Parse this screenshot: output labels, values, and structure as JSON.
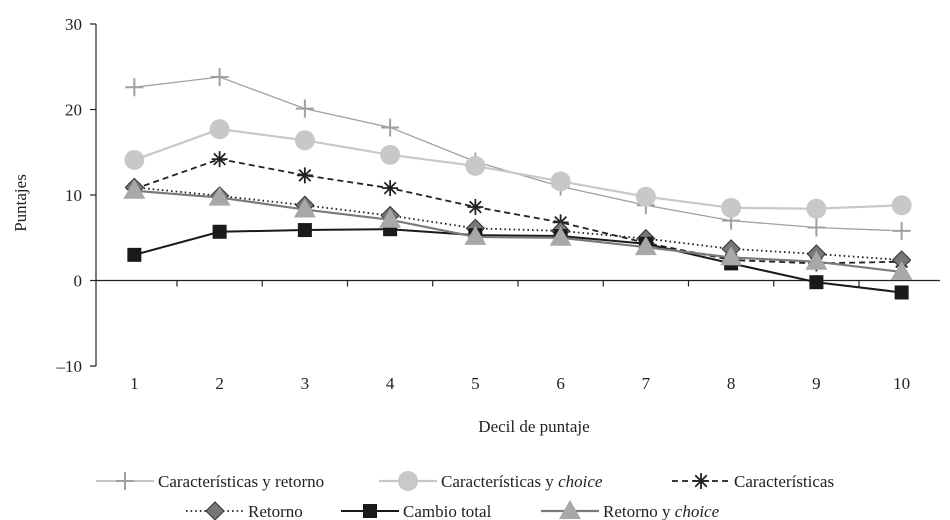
{
  "chart_data": {
    "type": "line",
    "title": "",
    "xlabel": "Decil de puntaje",
    "ylabel": "Puntajes",
    "x": [
      1,
      2,
      3,
      4,
      5,
      6,
      7,
      8,
      9,
      10
    ],
    "xlim": [
      0.55,
      10.45
    ],
    "ylim": [
      -10,
      30
    ],
    "yticks": [
      -10,
      0,
      10,
      20,
      30
    ],
    "ytick_labels": [
      "–10",
      "0",
      "10",
      "20",
      "30"
    ],
    "xtick_labels": [
      "1",
      "2",
      "3",
      "4",
      "5",
      "6",
      "7",
      "8",
      "9",
      "10"
    ],
    "grid": false,
    "legend_position": "bottom",
    "series": [
      {
        "name": "Características y retorno",
        "name_main": "Características y retorno",
        "name_italic": "",
        "color": "#a0a0a0",
        "line": "solid",
        "marker": "plus",
        "values": [
          22.6,
          23.8,
          20.1,
          17.9,
          13.9,
          11.0,
          8.8,
          7.0,
          6.2,
          5.8
        ]
      },
      {
        "name": "Características y choice",
        "name_main": "Características y ",
        "name_italic": "choice",
        "color": "#c8c8c8",
        "line": "solid",
        "marker": "circle",
        "values": [
          14.1,
          17.7,
          16.4,
          14.7,
          13.4,
          11.6,
          9.8,
          8.5,
          8.4,
          8.8
        ]
      },
      {
        "name": "Características",
        "name_main": "Características",
        "name_italic": "",
        "color": "#222222",
        "line": "dashed",
        "marker": "asterisk",
        "values": [
          10.7,
          14.2,
          12.3,
          10.8,
          8.6,
          6.8,
          4.4,
          2.4,
          2.0,
          2.2
        ]
      },
      {
        "name": "Retorno",
        "name_main": "Retorno",
        "name_italic": "",
        "color": "#222222",
        "marker_color": "#777777",
        "line": "dotted",
        "marker": "diamond",
        "values": [
          10.9,
          9.9,
          8.8,
          7.6,
          6.1,
          5.8,
          4.9,
          3.7,
          3.1,
          2.4
        ]
      },
      {
        "name": "Cambio total",
        "name_main": "Cambio total",
        "name_italic": "",
        "color": "#1a1a1a",
        "line": "solid",
        "marker": "square",
        "values": [
          3.0,
          5.7,
          5.9,
          6.0,
          5.3,
          5.2,
          4.3,
          2.0,
          -0.2,
          -1.4
        ]
      },
      {
        "name": "Retorno y choice",
        "name_main": "Retorno y ",
        "name_italic": "choice",
        "color": "#7a7a7a",
        "marker_color": "#a8a8a8",
        "line": "solid",
        "marker": "triangle",
        "values": [
          10.5,
          9.7,
          8.3,
          7.1,
          5.1,
          5.0,
          3.9,
          2.7,
          2.2,
          1.0
        ]
      }
    ]
  }
}
